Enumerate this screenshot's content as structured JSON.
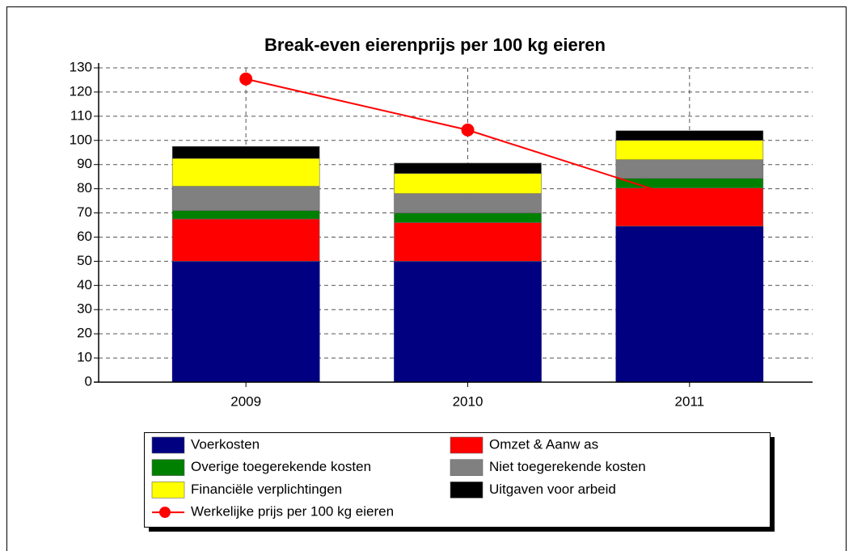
{
  "chart_data": {
    "type": "bar",
    "stacked": true,
    "title": "Break-even eierenprijs per 100 kg eieren",
    "categories": [
      "2009",
      "2010",
      "2011"
    ],
    "series": [
      {
        "name": "Voerkosten",
        "color": "#000080",
        "values": [
          50,
          50,
          64.5
        ]
      },
      {
        "name": "Omzet & Aanw as",
        "color": "#ff0000",
        "values": [
          17.5,
          16,
          15.8
        ]
      },
      {
        "name": "Overige toegerekende kosten",
        "color": "#008000",
        "values": [
          3.5,
          4,
          4
        ]
      },
      {
        "name": "Niet toegerekende kosten",
        "color": "#808080",
        "values": [
          10,
          8,
          7.7
        ]
      },
      {
        "name": "Financiële verplichtingen",
        "color": "#ffff00",
        "values": [
          11.5,
          8.3,
          8
        ]
      },
      {
        "name": "Uitgaven voor arbeid",
        "color": "#000000",
        "values": [
          5,
          4.3,
          4
        ]
      },
      {
        "name": "Werkelijke prijs per 100 kg eieren",
        "color": "#ff0000",
        "type": "line",
        "values": [
          125.4,
          104.3,
          75
        ]
      }
    ],
    "ylim": [
      0,
      130
    ],
    "yticks": [
      0,
      10,
      20,
      30,
      40,
      50,
      60,
      70,
      80,
      90,
      100,
      110,
      120,
      130
    ],
    "grid": true,
    "legend": "bottom"
  }
}
